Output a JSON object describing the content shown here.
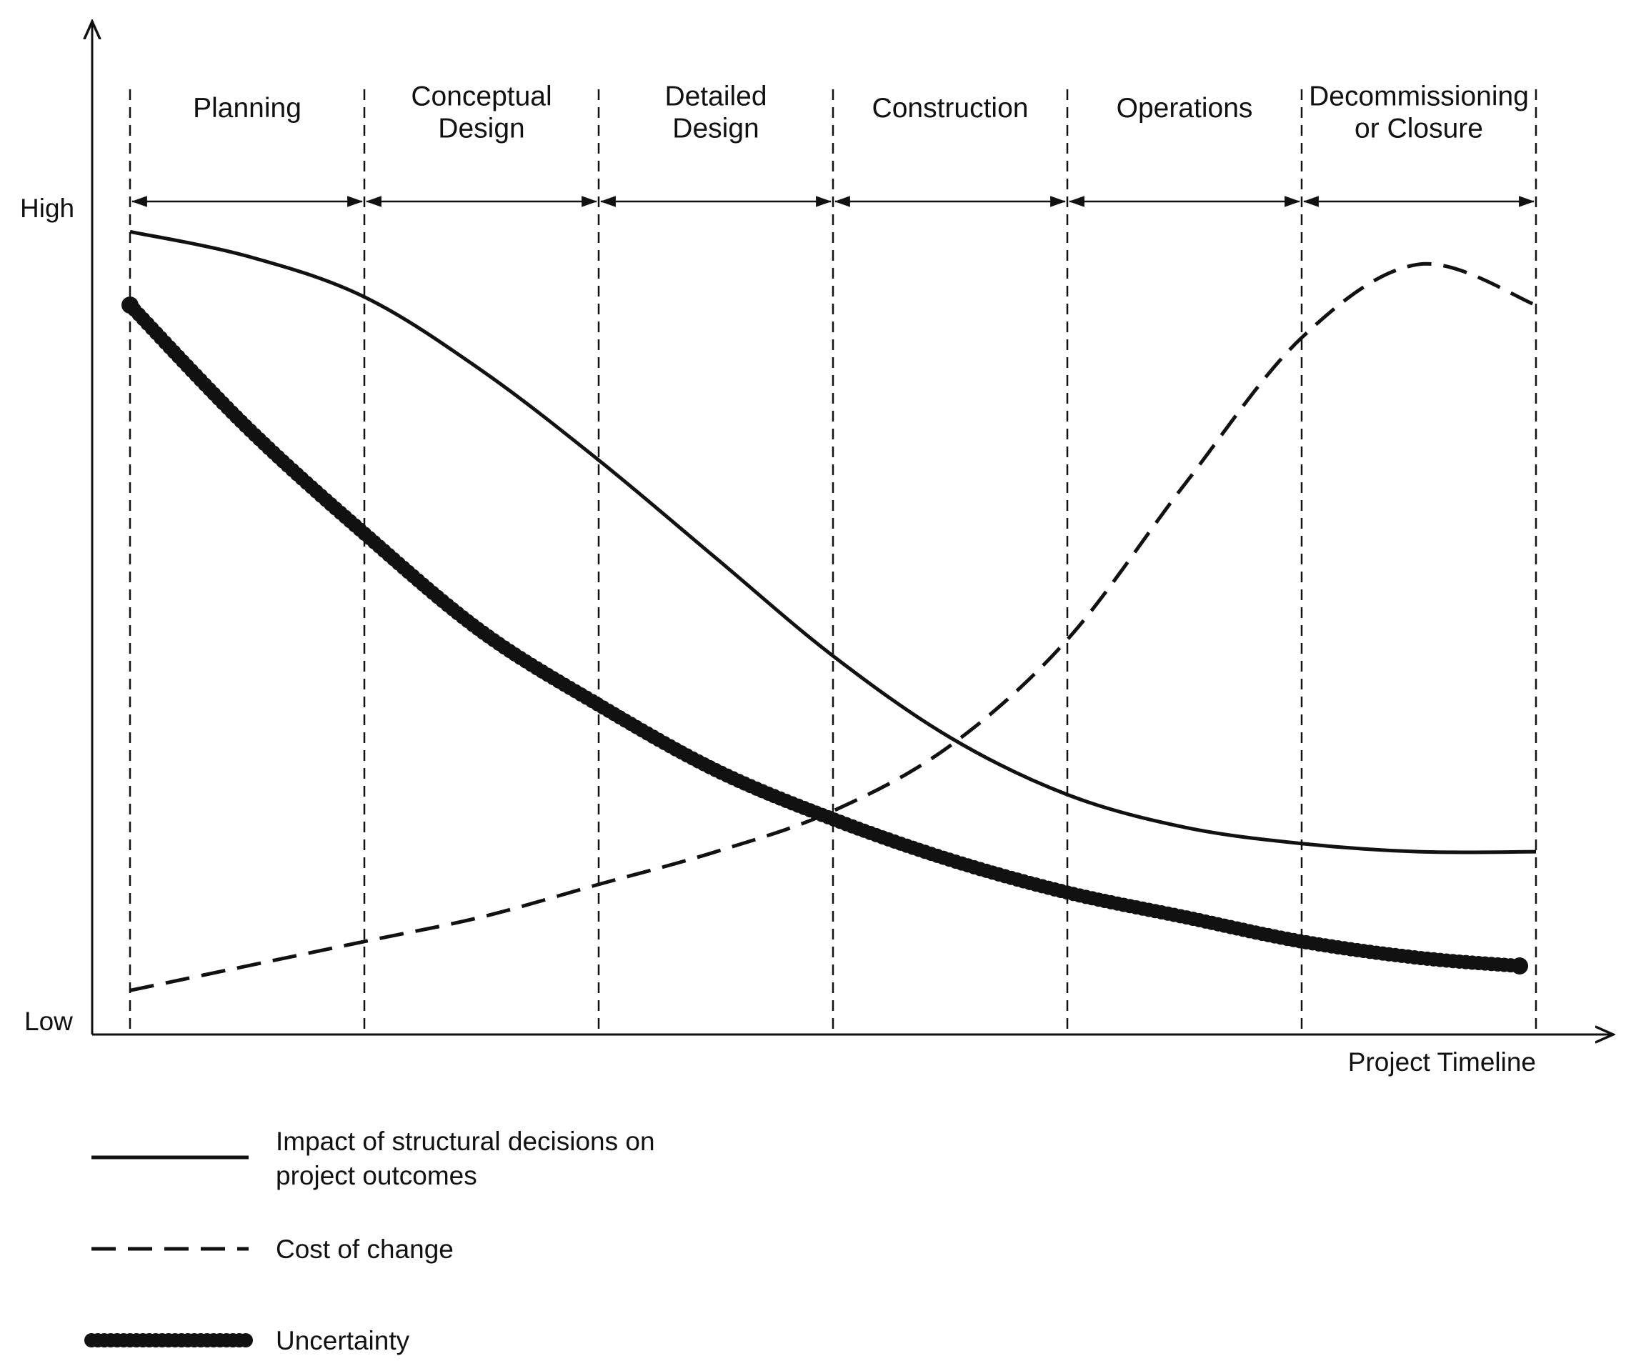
{
  "chart_data": {
    "type": "line",
    "y_axis": {
      "high_label": "High",
      "low_label": "Low",
      "ylim": [
        0,
        1
      ]
    },
    "x_axis": {
      "label": "Project Timeline",
      "xlim": [
        0,
        6
      ]
    },
    "phases": [
      {
        "label_lines": [
          "Planning"
        ]
      },
      {
        "label_lines": [
          "Conceptual",
          "Design"
        ]
      },
      {
        "label_lines": [
          "Detailed",
          "Design"
        ]
      },
      {
        "label_lines": [
          "Construction"
        ]
      },
      {
        "label_lines": [
          "Operations"
        ]
      },
      {
        "label_lines": [
          "Decommissioning",
          "or Closure"
        ]
      }
    ],
    "phase_boundaries": [
      0,
      1,
      2,
      3,
      4,
      5,
      6
    ],
    "series": [
      {
        "name": "Impact of structural decisions on project outcomes",
        "legend_lines": [
          "Impact of structural decisions on",
          "project outcomes"
        ],
        "style": "solid",
        "x": [
          0,
          0.5,
          1,
          1.5,
          2,
          2.5,
          3,
          3.5,
          4,
          4.5,
          5,
          5.5,
          6
        ],
        "y": [
          0.97,
          0.94,
          0.89,
          0.8,
          0.69,
          0.57,
          0.45,
          0.35,
          0.28,
          0.24,
          0.22,
          0.21,
          0.21
        ]
      },
      {
        "name": "Cost of change",
        "legend_lines": [
          "Cost of change"
        ],
        "style": "dashed",
        "x": [
          0,
          0.5,
          1,
          1.5,
          2,
          2.5,
          3,
          3.5,
          4,
          4.5,
          5,
          5.5,
          6
        ],
        "y": [
          0.04,
          0.07,
          0.1,
          0.13,
          0.17,
          0.21,
          0.26,
          0.34,
          0.47,
          0.66,
          0.84,
          0.93,
          0.88
        ]
      },
      {
        "name": "Uncertainty",
        "legend_lines": [
          "Uncertainty"
        ],
        "style": "thick-dotted",
        "x": [
          0,
          0.5,
          1,
          1.5,
          2,
          2.5,
          3,
          3.5,
          4,
          4.5,
          5,
          5.5,
          5.93
        ],
        "y": [
          0.88,
          0.73,
          0.6,
          0.48,
          0.39,
          0.31,
          0.25,
          0.2,
          0.16,
          0.13,
          0.1,
          0.08,
          0.07
        ]
      }
    ],
    "grid": false,
    "legend_position": "bottom-left",
    "colors": {
      "ink": "#111111",
      "background": "#ffffff"
    }
  }
}
